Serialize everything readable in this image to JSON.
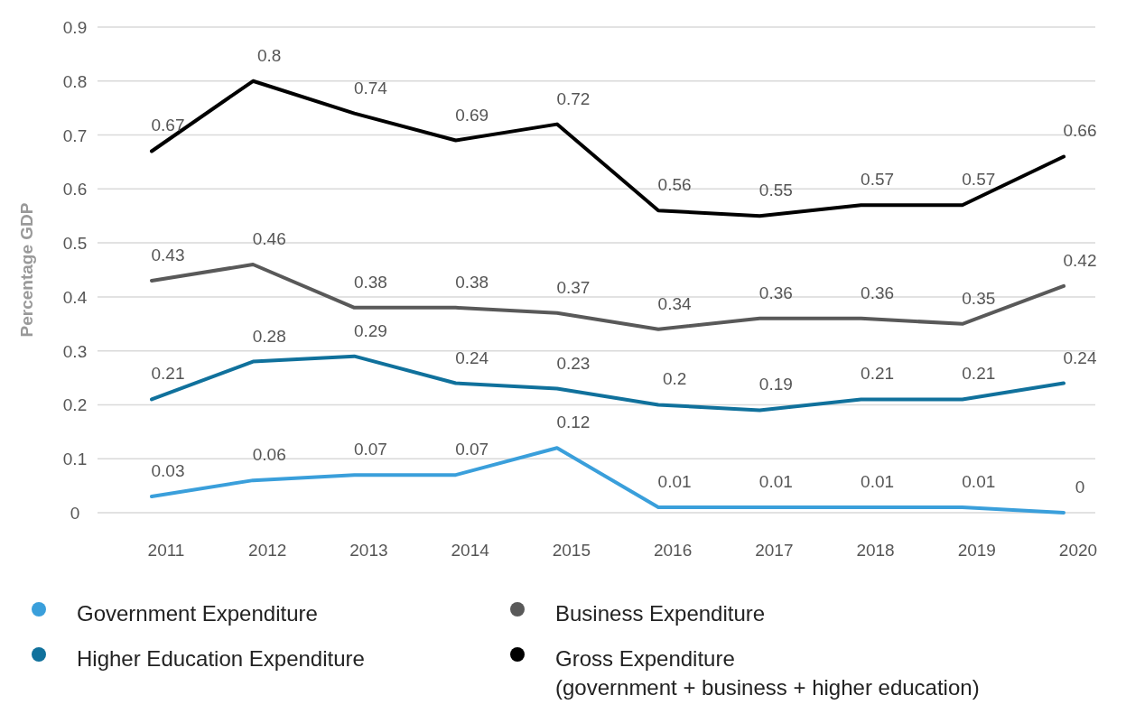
{
  "chart_data": {
    "type": "line",
    "ylabel": "Percentage GDP",
    "categories": [
      "2011",
      "2012",
      "2013",
      "2014",
      "2015",
      "2016",
      "2017",
      "2018",
      "2019",
      "2020"
    ],
    "series": [
      {
        "name": "Government Expenditure",
        "color": "#3a9fdb",
        "values": [
          0.03,
          0.06,
          0.07,
          0.07,
          0.12,
          0.01,
          0.01,
          0.01,
          0.01,
          0
        ]
      },
      {
        "name": "Business Expenditure",
        "color": "#595959",
        "values": [
          0.43,
          0.46,
          0.38,
          0.38,
          0.37,
          0.34,
          0.36,
          0.36,
          0.35,
          0.42
        ]
      },
      {
        "name": "Higher Education Expenditure",
        "color": "#10719c",
        "values": [
          0.21,
          0.28,
          0.29,
          0.24,
          0.23,
          0.2,
          0.19,
          0.21,
          0.21,
          0.24
        ]
      },
      {
        "name": "Gross Expenditure\n(government + business + higher education)",
        "color": "#000000",
        "values": [
          0.67,
          0.8,
          0.74,
          0.69,
          0.72,
          0.56,
          0.55,
          0.57,
          0.57,
          0.66
        ]
      }
    ],
    "ylim": [
      0,
      0.9
    ],
    "yticks": [
      0,
      0.1,
      0.2,
      0.3,
      0.4,
      0.5,
      0.6,
      0.7,
      0.8,
      0.9
    ],
    "grid": "y",
    "legend": "bottom",
    "data_labels": true,
    "marker": "none",
    "line_style": "solid"
  }
}
